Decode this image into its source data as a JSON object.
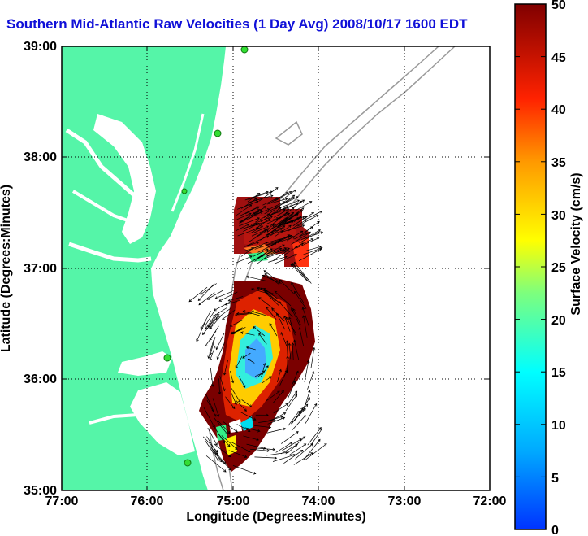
{
  "title": "Southern Mid-Atlantic Raw Velocities (1 Day Avg) 2008/10/17 1600 EDT",
  "map": {
    "xlabel": "Longitude (Degrees:Minutes)",
    "ylabel": "Latitude (Degrees:Minutes)",
    "x_ticks": [
      "77:00",
      "76:00",
      "75:00",
      "74:00",
      "73:00",
      "72:00"
    ],
    "y_ticks": [
      "39:00",
      "38:00",
      "37:00",
      "36:00",
      "35:00"
    ],
    "lon_range": [
      -77,
      -72
    ],
    "lat_range": [
      35,
      39
    ],
    "grid": "dotted",
    "colors": {
      "land": "#55f5a8",
      "water": "#ffffff",
      "bathymetry": "#9a9a9a",
      "stations": "#33dd33",
      "vectors": "#000000"
    }
  },
  "colorbar": {
    "label": "Surface Velocity (cm/s)",
    "ticks": [
      "50",
      "45",
      "40",
      "35",
      "30",
      "25",
      "20",
      "15",
      "10",
      "5",
      "0"
    ],
    "range": [
      0,
      50
    ],
    "colormap": "jet"
  }
}
